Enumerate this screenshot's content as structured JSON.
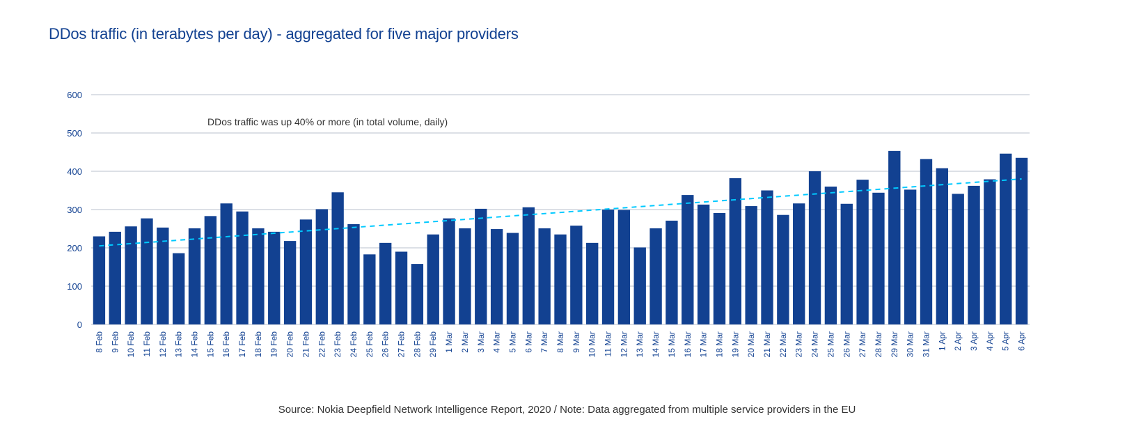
{
  "chart_data": {
    "type": "bar",
    "title": "DDos traffic (in terabytes per day) - aggregated for five major providers",
    "annotation": "DDos traffic was up 40% or more (in total volume, daily)",
    "source": "Source: Nokia Deepfield Network Intelligence Report, 2020  /  Note: Data aggregated from multiple service providers in the EU",
    "xlabel": "",
    "ylabel": "",
    "ylim": [
      0,
      600
    ],
    "yticks": [
      0,
      100,
      200,
      300,
      400,
      500,
      600
    ],
    "grid": true,
    "colors": {
      "bar": "#124191",
      "trend": "#00C9FF",
      "grid": "#D0D5DD",
      "text": "#124191"
    },
    "categories": [
      "8 Feb",
      "9 Feb",
      "10 Feb",
      "11 Feb",
      "12 Feb",
      "13 Feb",
      "14 Feb",
      "15 Feb",
      "16 Feb",
      "17 Feb",
      "18 Feb",
      "19 Feb",
      "20 Feb",
      "21 Feb",
      "22 Feb",
      "23 Feb",
      "24 Feb",
      "25 Feb",
      "26 Feb",
      "27 Feb",
      "28 Feb",
      "29 Feb",
      "1 Mar",
      "2 Mar",
      "3 Mar",
      "4 Mar",
      "5 Mar",
      "6 Mar",
      "7 Mar",
      "8 Mar",
      "9 Mar",
      "10 Mar",
      "11 Mar",
      "12 Mar",
      "13 Mar",
      "14 Mar",
      "15 Mar",
      "16 Mar",
      "17 Mar",
      "18 Mar",
      "19 Mar",
      "20 Mar",
      "21 Mar",
      "22 Mar",
      "23 Mar",
      "24 Mar",
      "25 Mar",
      "26 Mar",
      "27 Mar",
      "28 Mar",
      "29 Mar",
      "30 Mar",
      "31 Mar",
      "1 Apr",
      "2 Apr",
      "3 Apr",
      "4 Apr",
      "5 Apr",
      "6 Apr"
    ],
    "series": [
      {
        "name": "DDoS traffic (TB/day)",
        "values": [
          230,
          242,
          256,
          277,
          253,
          186,
          251,
          283,
          316,
          295,
          251,
          242,
          218,
          274,
          301,
          345,
          262,
          183,
          213,
          190,
          158,
          235,
          277,
          251,
          302,
          249,
          239,
          306,
          251,
          235,
          258,
          213,
          300,
          299,
          201,
          251,
          271,
          338,
          313,
          291,
          382,
          309,
          350,
          286,
          316,
          400,
          360,
          315,
          378,
          344,
          453,
          352,
          432,
          408,
          341,
          362,
          379,
          446,
          435
        ]
      }
    ],
    "trendline": {
      "type": "linear",
      "style": "dashed",
      "start": 205,
      "end": 380
    }
  }
}
